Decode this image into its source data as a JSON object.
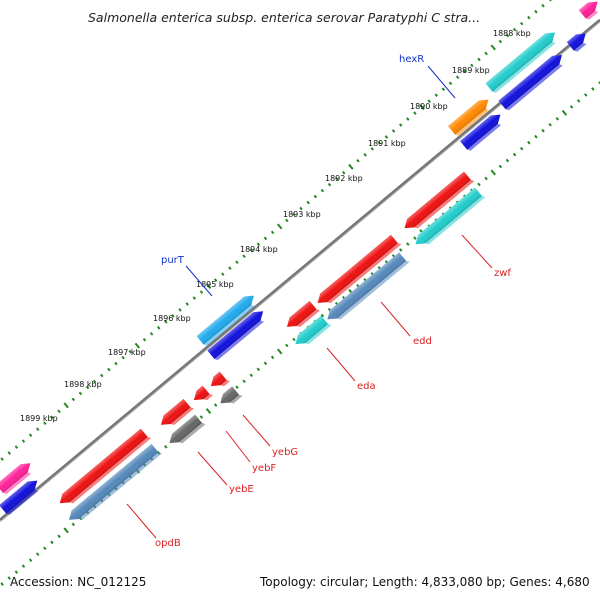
{
  "title": "Salmonella enterica subsp. enterica serovar Paratyphi C stra...",
  "footer": {
    "accession": "Accession: NC_012125",
    "topology": "Topology: circular; Length: 4,833,080 bp; Genes: 4,680"
  },
  "ticks": [
    "1888 kbp",
    "1889 kbp",
    "1890 kbp",
    "1891 kbp",
    "1892 kbp",
    "1893 kbp",
    "1894 kbp",
    "1895 kbp",
    "1896 kbp",
    "1897 kbp",
    "1898 kbp",
    "1899 kbp"
  ],
  "genes": {
    "hexR": "hexR",
    "purT": "purT",
    "zwf": "zwf",
    "edd": "edd",
    "eda": "eda",
    "yebG": "yebG",
    "yebF": "yebF",
    "yebE": "yebE",
    "opdB": "opdB"
  },
  "colors": {
    "red": "#ee1111",
    "cyan": "#22cccc",
    "blue": "#1111dd",
    "orange": "#ff8800",
    "lightblue": "#22aaee",
    "steelblue": "#5588bb",
    "gray": "#666666",
    "magenta": "#ff2299",
    "dots": "#228822",
    "backbone": "#777777",
    "forward_label": "#1133cc",
    "reverse_label": "#dd2222"
  }
}
